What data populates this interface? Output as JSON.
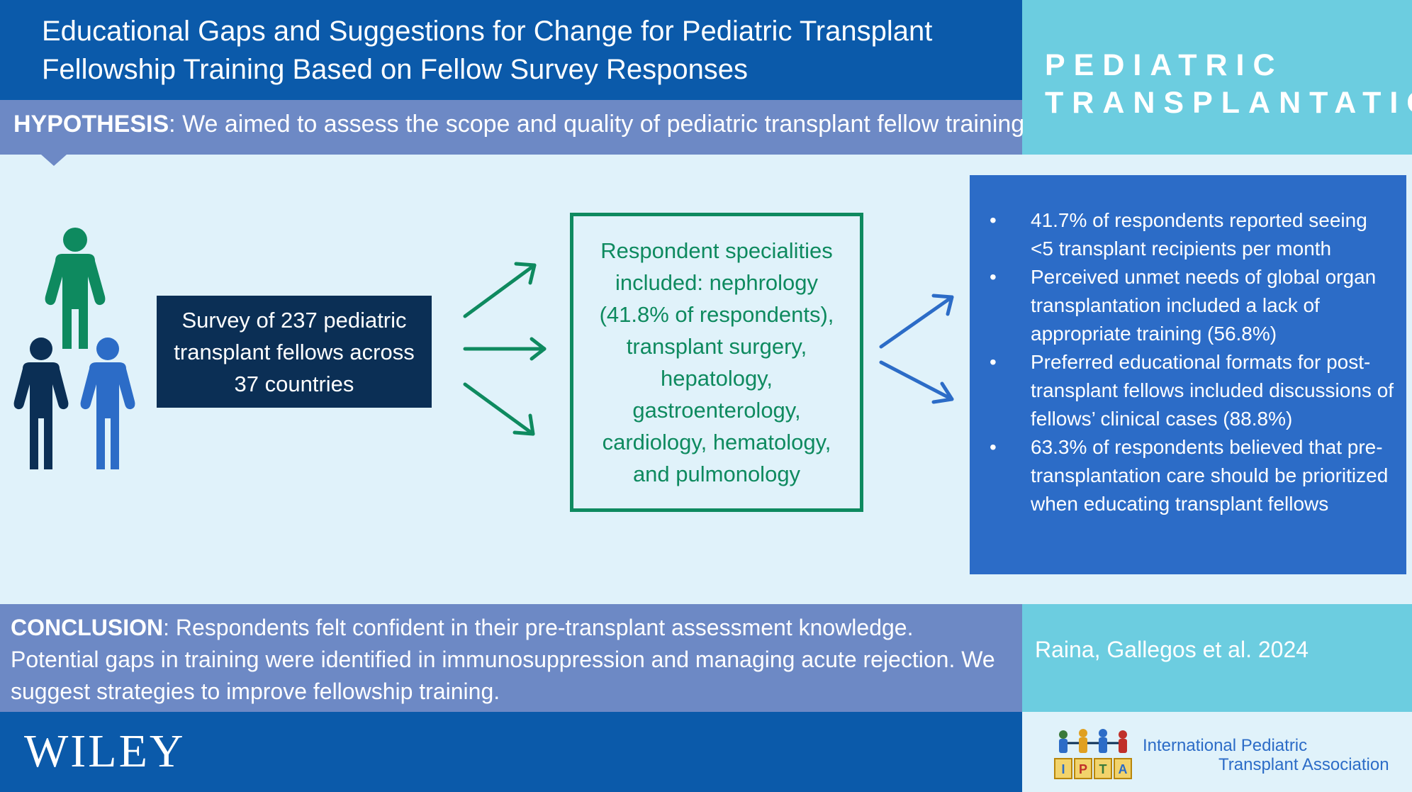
{
  "header": {
    "title": "Educational Gaps and Suggestions for Change for Pediatric Transplant Fellowship Training Based on Fellow Survey Responses",
    "journal_line1": "PEDIATRIC",
    "journal_line2": "TRANSPLANTATION"
  },
  "hypothesis": {
    "label": "HYPOTHESIS",
    "text": ": We aimed to assess the scope and quality of pediatric transplant fellow training"
  },
  "survey": {
    "text": "Survey of 237 pediatric transplant fellows across 37 countries",
    "icon": "people-group-icon"
  },
  "specialities": {
    "text": "Respondent specialities included: nephrology (41.8% of respondents), transplant surgery, hepatology, gastroenterology, cardiology, hematology, and pulmonology"
  },
  "findings": {
    "items": [
      "41.7% of respondents reported seeing <5 transplant recipients per month",
      "Perceived unmet needs of global organ transplantation included a lack of appropriate training (56.8%)",
      "Preferred educational formats for post-transplant fellows included discussions of fellows’ clinical cases (88.8%)",
      "63.3% of respondents believed that pre-transplantation care should be prioritized when educating transplant fellows"
    ]
  },
  "conclusion": {
    "label": "CONCLUSION",
    "text": ": Respondents felt confident in their pre-transplant assessment knowledge. Potential gaps in training were identified in immunosuppression and managing acute rejection. We suggest strategies to improve fellowship training."
  },
  "citation": "Raina, Gallegos et al. 2024",
  "footer": {
    "publisher": "WILEY",
    "association_line1": "International Pediatric",
    "association_line2": "Transplant Association",
    "association_logo_letters": [
      "I",
      "P",
      "T",
      "A"
    ]
  },
  "colors": {
    "navy": "#0b5aaa",
    "periwinkle": "#6d89c5",
    "teal": "#6ccde0",
    "light_bg": "#e0f2fa",
    "dark_box": "#0b2f55",
    "green": "#0e8a5f",
    "blue_box": "#2c6cc7"
  }
}
